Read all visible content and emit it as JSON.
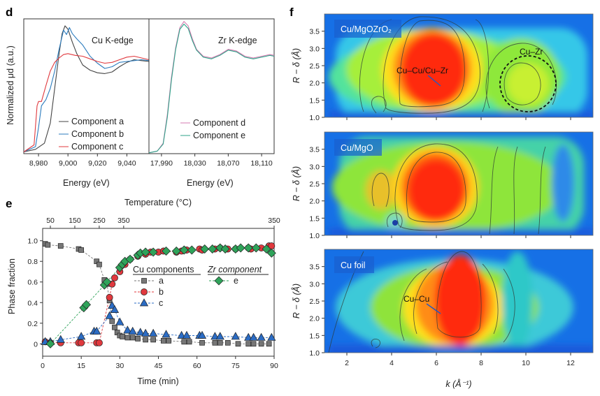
{
  "panels": {
    "d": "d",
    "e": "e",
    "f": "f"
  },
  "chart_data": [
    {
      "id": "d-left",
      "type": "line",
      "title": "Cu K-edge",
      "xlabel": "Energy (eV)",
      "ylabel": "Normalized μd (a.u.)",
      "xlim": [
        8970,
        9055
      ],
      "ylim": [
        0,
        1.55
      ],
      "xticks": [
        8980,
        9000,
        9020,
        9040
      ],
      "xtick_labels": [
        "8,980",
        "9,000",
        "9,020",
        "9,040"
      ],
      "series": [
        {
          "name": "Component a",
          "color": "#444444",
          "x": [
            8970,
            8978,
            8984,
            8988,
            8991,
            8994,
            8996,
            8998,
            9000,
            9003,
            9006,
            9010,
            9015,
            9020,
            9025,
            9030,
            9035,
            9040,
            9045,
            9050,
            9055
          ],
          "y": [
            0.02,
            0.05,
            0.12,
            0.35,
            0.75,
            1.15,
            1.38,
            1.47,
            1.43,
            1.28,
            1.15,
            1.02,
            0.96,
            0.93,
            0.92,
            0.94,
            1.0,
            1.05,
            1.08,
            1.07,
            1.06
          ]
        },
        {
          "name": "Component b",
          "color": "#2b7bbd",
          "x": [
            8970,
            8978,
            8980,
            8982,
            8985,
            8988,
            8991,
            8994,
            8997,
            8999,
            9001,
            9003,
            9006,
            9010,
            9015,
            9020,
            9025,
            9030,
            9035,
            9040,
            9045,
            9050,
            9055
          ],
          "y": [
            0.02,
            0.08,
            0.3,
            0.55,
            0.62,
            0.75,
            0.95,
            1.2,
            1.42,
            1.37,
            1.45,
            1.38,
            1.32,
            1.25,
            1.12,
            1.04,
            0.98,
            1.0,
            1.05,
            1.06,
            1.07,
            1.08,
            1.07
          ]
        },
        {
          "name": "Component c",
          "color": "#e0393e",
          "x": [
            8970,
            8977,
            8979,
            8980,
            8982,
            8985,
            8988,
            8991,
            8994,
            8997,
            9000,
            9005,
            9010,
            9015,
            9020,
            9025,
            9030,
            9035,
            9040,
            9045,
            9050,
            9055
          ],
          "y": [
            0.02,
            0.1,
            0.55,
            0.6,
            0.6,
            0.78,
            0.95,
            1.05,
            1.1,
            1.14,
            1.15,
            1.13,
            1.12,
            1.09,
            1.06,
            1.04,
            1.05,
            1.08,
            1.11,
            1.12,
            1.1,
            1.08
          ]
        }
      ]
    },
    {
      "id": "d-right",
      "type": "line",
      "title": "Zr K-edge",
      "xlabel": "Energy (eV)",
      "xlim": [
        17975,
        18125
      ],
      "ylim": [
        0,
        1.55
      ],
      "xticks": [
        17990,
        18030,
        18070,
        18110
      ],
      "xtick_labels": [
        "17,990",
        "18,030",
        "18,070",
        "18,110"
      ],
      "series": [
        {
          "name": "Component d",
          "color": "#d67bb0",
          "x": [
            17975,
            17985,
            17992,
            17997,
            18002,
            18007,
            18012,
            18017,
            18022,
            18027,
            18032,
            18040,
            18050,
            18060,
            18070,
            18080,
            18090,
            18100,
            18110,
            18120,
            18125
          ],
          "y": [
            0.01,
            0.03,
            0.12,
            0.45,
            0.88,
            1.22,
            1.45,
            1.52,
            1.47,
            1.32,
            1.2,
            1.12,
            1.1,
            1.14,
            1.2,
            1.18,
            1.12,
            1.1,
            1.12,
            1.14,
            1.13
          ]
        },
        {
          "name": "Component e",
          "color": "#2fa38a",
          "x": [
            17975,
            17985,
            17992,
            17997,
            18002,
            18007,
            18012,
            18017,
            18022,
            18027,
            18032,
            18040,
            18050,
            18060,
            18070,
            18080,
            18090,
            18100,
            18110,
            18120,
            18125
          ],
          "y": [
            0.01,
            0.03,
            0.11,
            0.42,
            0.85,
            1.2,
            1.43,
            1.49,
            1.44,
            1.3,
            1.19,
            1.11,
            1.09,
            1.13,
            1.19,
            1.17,
            1.11,
            1.09,
            1.11,
            1.13,
            1.12
          ]
        }
      ]
    },
    {
      "id": "e",
      "type": "scatter",
      "xlabel": "Time (min)",
      "ylabel": "Phase fraction",
      "top_xlabel": "Temperature (°C)",
      "top_ticks": [
        {
          "t": 3,
          "label": "50"
        },
        {
          "t": 12.5,
          "label": "150"
        },
        {
          "t": 22,
          "label": "250"
        },
        {
          "t": 31.5,
          "label": "350"
        },
        {
          "t": 90,
          "label": "350"
        }
      ],
      "xlim": [
        0,
        90
      ],
      "ylim": [
        -0.12,
        1.12
      ],
      "xticks": [
        0,
        15,
        30,
        45,
        60,
        75,
        90
      ],
      "yticks": [
        0,
        0.2,
        0.4,
        0.6,
        0.8,
        1.0
      ],
      "ytick_labels": [
        "0",
        "0.2",
        "0.4",
        "0.6",
        "0.8",
        "1.0"
      ],
      "legend_titles": [
        "Cu components",
        "Zr component"
      ],
      "series": [
        {
          "name": "a",
          "marker": "square",
          "color": "#777777",
          "x": [
            1,
            2,
            7,
            14,
            15,
            21,
            22,
            24,
            25,
            26,
            27,
            28,
            29,
            30,
            31,
            33,
            35,
            37,
            40,
            43,
            47,
            49,
            55,
            57,
            62,
            67,
            69,
            72,
            76,
            80,
            82,
            85,
            88
          ],
          "y": [
            0.97,
            0.96,
            0.95,
            0.92,
            0.91,
            0.8,
            0.77,
            0.62,
            0.58,
            0.42,
            0.22,
            0.16,
            0.11,
            0.08,
            0.07,
            0.06,
            0.06,
            0.05,
            0.04,
            0.04,
            0.03,
            0.03,
            0.02,
            0.02,
            0.01,
            0.01,
            0.01,
            0.01,
            0.0,
            0.0,
            0.0,
            0.0,
            0.0
          ]
        },
        {
          "name": "b",
          "marker": "circle",
          "color": "#e0393e",
          "x": [
            1,
            3,
            7,
            14,
            15,
            21,
            22,
            26,
            27,
            28,
            30,
            32,
            34,
            37,
            40,
            42,
            45,
            47,
            52,
            54,
            56,
            61,
            62,
            67,
            69,
            72,
            75,
            80,
            81,
            85,
            88,
            89
          ],
          "y": [
            0.02,
            0.01,
            0.01,
            0.01,
            0.01,
            0.01,
            0.01,
            0.45,
            0.58,
            0.64,
            0.7,
            0.77,
            0.82,
            0.85,
            0.87,
            0.89,
            0.89,
            0.9,
            0.89,
            0.9,
            0.91,
            0.92,
            0.91,
            0.92,
            0.93,
            0.92,
            0.92,
            0.93,
            0.92,
            0.93,
            0.95,
            0.95
          ]
        },
        {
          "name": "c",
          "marker": "triangle",
          "color": "#2b6cc4",
          "x": [
            1,
            3,
            7,
            15,
            20,
            21,
            26,
            27,
            28,
            30,
            33,
            35,
            38,
            40,
            43,
            48,
            54,
            56,
            61,
            62,
            67,
            69,
            75,
            80,
            82,
            85,
            89
          ],
          "y": [
            0.02,
            0.02,
            0.04,
            0.07,
            0.12,
            0.12,
            0.27,
            0.37,
            0.33,
            0.21,
            0.13,
            0.12,
            0.11,
            0.1,
            0.1,
            0.09,
            0.08,
            0.08,
            0.08,
            0.08,
            0.07,
            0.07,
            0.07,
            0.06,
            0.06,
            0.06,
            0.06
          ]
        },
        {
          "name": "e",
          "marker": "diamond",
          "color": "#2fa35a",
          "x": [
            3,
            16,
            17,
            24,
            25,
            30,
            31,
            32,
            34,
            37,
            38,
            40,
            43,
            48,
            52,
            55,
            58,
            63,
            66,
            69,
            71,
            75,
            77,
            80,
            83,
            87,
            89
          ],
          "y": [
            0.0,
            0.35,
            0.38,
            0.57,
            0.6,
            0.74,
            0.77,
            0.8,
            0.82,
            0.86,
            0.88,
            0.89,
            0.89,
            0.9,
            0.9,
            0.91,
            0.91,
            0.92,
            0.92,
            0.93,
            0.92,
            0.92,
            0.93,
            0.93,
            0.93,
            0.92,
            0.88
          ]
        }
      ]
    },
    {
      "id": "f",
      "type": "heatmap",
      "xlabel": "k (Å⁻¹)",
      "ylabel": "R − δ (Å)",
      "xlim": [
        1,
        13
      ],
      "ylim": [
        1.0,
        4.0
      ],
      "xticks": [
        2,
        4,
        6,
        8,
        10,
        12
      ],
      "yticks": [
        1.0,
        1.5,
        2.0,
        2.5,
        3.0,
        3.5
      ],
      "ytick_labels": [
        "1.0",
        "1.5",
        "2.0",
        "2.5",
        "3.0",
        "3.5"
      ],
      "subplots": [
        {
          "tag": "Cu/MgOZrO₂",
          "annotations": [
            "Cu–Cu/Cu–Zr",
            "Cu–Zr"
          ]
        },
        {
          "tag": "Cu/MgO",
          "annotations": []
        },
        {
          "tag": "Cu foil",
          "annotations": [
            "Cu–Cu"
          ]
        }
      ]
    }
  ]
}
